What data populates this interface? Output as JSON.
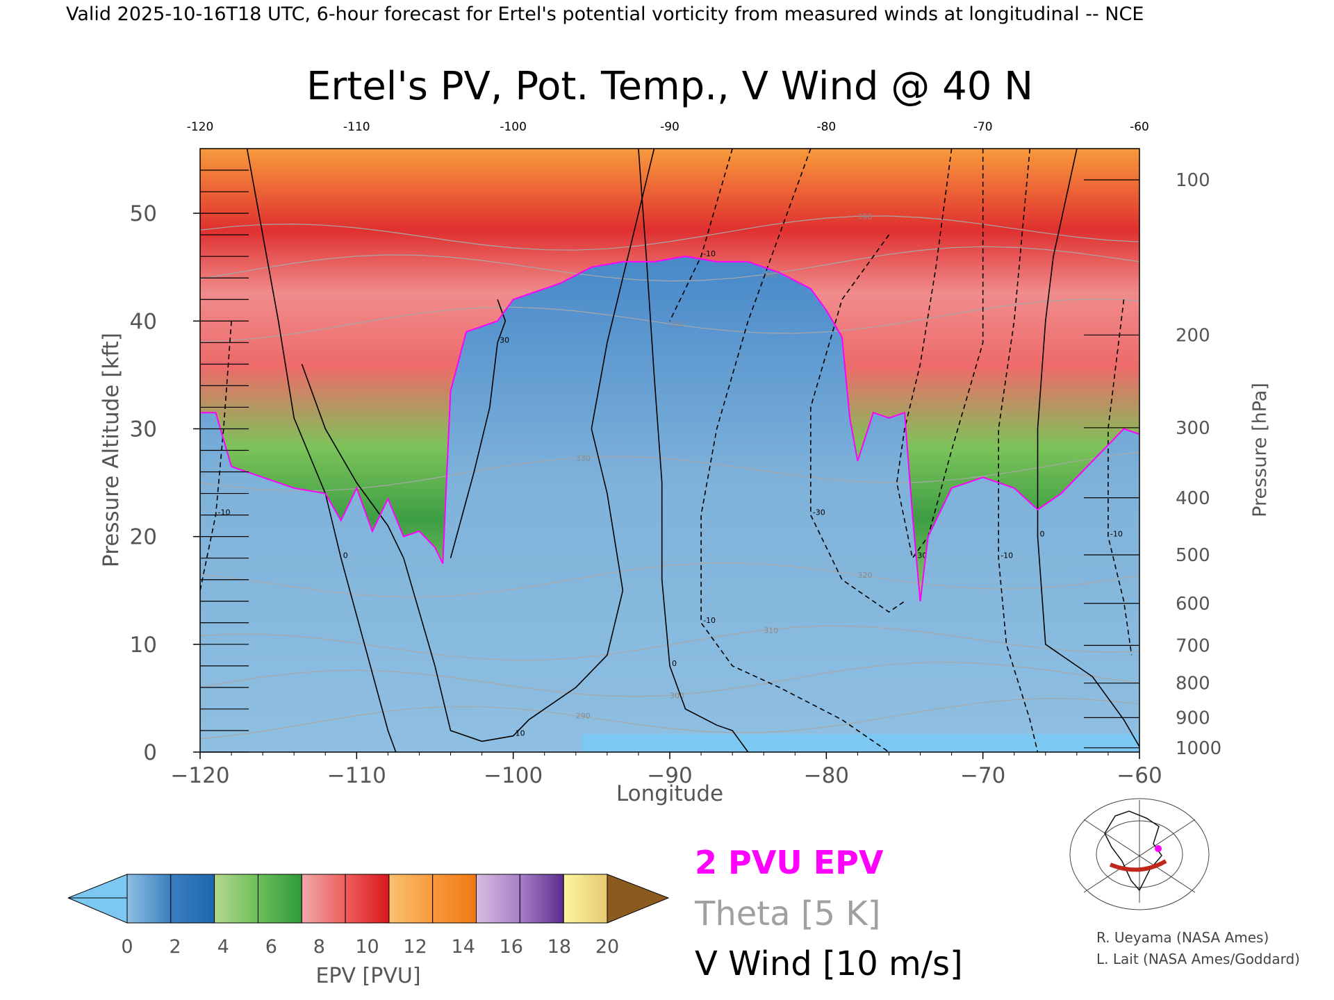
{
  "header": "Valid 2025-10-16T18 UTC, 6-hour forecast for Ertel's potential vorticity from measured winds at longitudinal -- NCE",
  "chart_data": {
    "type": "heatmap",
    "title": "Ertel's PV, Pot. Temp., V Wind @ 40 N",
    "xlabel": "Longitude",
    "ylabel_left": "Pressure Altitude [kft]",
    "ylabel_right": "Pressure [hPa]",
    "xlim": [
      -120,
      -60
    ],
    "ylim": [
      0,
      56
    ],
    "x_ticks": [
      -120,
      -110,
      -100,
      -90,
      -80,
      -70,
      -60
    ],
    "x_tick_labels": [
      "−120",
      "−110",
      "−100",
      "−90",
      "−80",
      "−70",
      "−60"
    ],
    "top_tick_labels": [
      "-120",
      "-110",
      "-100",
      "-90",
      "-80",
      "-70",
      "-60"
    ],
    "y_ticks": [
      0,
      10,
      20,
      30,
      40,
      50
    ],
    "pressure_ticks": [
      {
        "hPa": "100",
        "kft": 53.1
      },
      {
        "hPa": "200",
        "kft": 38.7
      },
      {
        "hPa": "300",
        "kft": 30.1
      },
      {
        "hPa": "400",
        "kft": 23.6
      },
      {
        "hPa": "500",
        "kft": 18.3
      },
      {
        "hPa": "600",
        "kft": 13.8
      },
      {
        "hPa": "700",
        "kft": 9.9
      },
      {
        "hPa": "800",
        "kft": 6.4
      },
      {
        "hPa": "900",
        "kft": 3.2
      },
      {
        "hPa": "1000",
        "kft": 0.4
      }
    ],
    "tropopause_2pvu_kft": [
      [
        -120,
        31.5
      ],
      [
        -119,
        31.5
      ],
      [
        -118,
        26.5
      ],
      [
        -116,
        25.5
      ],
      [
        -114,
        24.5
      ],
      [
        -112,
        24.0
      ],
      [
        -111,
        21.5
      ],
      [
        -110,
        24.5
      ],
      [
        -109,
        20.5
      ],
      [
        -108,
        23.5
      ],
      [
        -107,
        20.0
      ],
      [
        -106,
        20.5
      ],
      [
        -105,
        19.0
      ],
      [
        -104.5,
        17.5
      ],
      [
        -104,
        33.5
      ],
      [
        -103,
        39.0
      ],
      [
        -101,
        40.0
      ],
      [
        -100,
        42.0
      ],
      [
        -99,
        42.5
      ],
      [
        -97,
        43.5
      ],
      [
        -95,
        45.0
      ],
      [
        -93,
        45.5
      ],
      [
        -91,
        45.5
      ],
      [
        -89,
        46.0
      ],
      [
        -87,
        45.5
      ],
      [
        -85,
        45.5
      ],
      [
        -83,
        44.5
      ],
      [
        -81,
        43.0
      ],
      [
        -80,
        41.0
      ],
      [
        -79,
        38.5
      ],
      [
        -78.5,
        31.0
      ],
      [
        -78,
        27.0
      ],
      [
        -77,
        31.5
      ],
      [
        -76,
        31.0
      ],
      [
        -75,
        31.5
      ],
      [
        -74.5,
        22.0
      ],
      [
        -74,
        14.0
      ],
      [
        -73.5,
        20.0
      ],
      [
        -72,
        24.5
      ],
      [
        -70,
        25.5
      ],
      [
        -68,
        24.5
      ],
      [
        -66.5,
        22.5
      ],
      [
        -65,
        24.0
      ],
      [
        -63,
        27.0
      ],
      [
        -61,
        30.0
      ],
      [
        -60,
        29.5
      ]
    ],
    "v_wind_contours_ms": [
      {
        "level": 10,
        "style": "solid",
        "points": [
          [
            -113.5,
            36
          ],
          [
            -112,
            30
          ],
          [
            -110,
            25
          ],
          [
            -108,
            21
          ],
          [
            -107,
            18
          ],
          [
            -106,
            13
          ],
          [
            -105,
            8
          ],
          [
            -104,
            2
          ],
          [
            -102,
            1
          ],
          [
            -100,
            1.5
          ],
          [
            -99,
            3
          ],
          [
            -96,
            6
          ],
          [
            -94,
            9
          ],
          [
            -93,
            15
          ],
          [
            -94,
            24
          ],
          [
            -95,
            30
          ],
          [
            -94,
            38
          ],
          [
            -93,
            44
          ],
          [
            -91,
            56
          ]
        ]
      },
      {
        "level": 0,
        "style": "solid",
        "points": [
          [
            -117,
            56
          ],
          [
            -115,
            40
          ],
          [
            -114,
            31
          ],
          [
            -112,
            24
          ],
          [
            -111,
            18
          ],
          [
            -109.5,
            10
          ],
          [
            -108,
            2
          ],
          [
            -107.5,
            0
          ]
        ]
      },
      {
        "level": 0,
        "style": "solid",
        "points": [
          [
            -92,
            56
          ],
          [
            -91.5,
            46
          ],
          [
            -91,
            35
          ],
          [
            -90.5,
            25
          ],
          [
            -90.5,
            16
          ],
          [
            -90,
            8
          ],
          [
            -89,
            4
          ],
          [
            -87,
            2.5
          ],
          [
            -86,
            2
          ],
          [
            -85,
            0
          ]
        ]
      },
      {
        "level": 30,
        "style": "solid",
        "points": [
          [
            -104,
            18
          ],
          [
            -102.5,
            26
          ],
          [
            -101.5,
            32
          ],
          [
            -101,
            38
          ],
          [
            -100.5,
            40
          ],
          [
            -101,
            42
          ]
        ]
      },
      {
        "level": -10,
        "style": "dashed",
        "points": [
          [
            -81,
            56
          ],
          [
            -83,
            48
          ],
          [
            -85,
            40
          ],
          [
            -87,
            30
          ],
          [
            -88,
            22
          ],
          [
            -88,
            12
          ],
          [
            -86,
            8
          ],
          [
            -83,
            6
          ],
          [
            -79,
            3
          ],
          [
            -76,
            0
          ]
        ]
      },
      {
        "level": -10,
        "style": "dashed",
        "points": [
          [
            -86,
            56
          ],
          [
            -88,
            46
          ],
          [
            -90,
            40
          ]
        ]
      },
      {
        "level": -30,
        "style": "dashed",
        "points": [
          [
            -76,
            48
          ],
          [
            -79,
            42
          ],
          [
            -81,
            32
          ],
          [
            -81,
            22
          ],
          [
            -79,
            16
          ],
          [
            -76,
            13
          ],
          [
            -75,
            14
          ]
        ]
      },
      {
        "level": -30,
        "style": "dashed",
        "points": [
          [
            -72,
            56
          ],
          [
            -73,
            45
          ],
          [
            -74,
            36
          ],
          [
            -75,
            30
          ],
          [
            -75.5,
            25
          ],
          [
            -74.5,
            18
          ],
          [
            -73.5,
            20
          ],
          [
            -72,
            28
          ],
          [
            -70,
            38
          ],
          [
            -70,
            56
          ]
        ]
      },
      {
        "level": -10,
        "style": "dashed",
        "points": [
          [
            -67,
            56
          ],
          [
            -68,
            40
          ],
          [
            -69,
            30
          ],
          [
            -69,
            18
          ],
          [
            -68.5,
            10
          ],
          [
            -67,
            3
          ],
          [
            -66.5,
            0
          ]
        ]
      },
      {
        "level": -10,
        "style": "dashed",
        "points": [
          [
            -118,
            40
          ],
          [
            -118.5,
            30
          ],
          [
            -119,
            22
          ],
          [
            -120,
            15
          ]
        ]
      },
      {
        "level": -10,
        "style": "dashed",
        "points": [
          [
            -61,
            42
          ],
          [
            -62,
            30
          ],
          [
            -62,
            20
          ],
          [
            -61,
            14
          ],
          [
            -60.5,
            9
          ]
        ]
      },
      {
        "level": 0,
        "style": "solid",
        "points": [
          [
            -64,
            56
          ],
          [
            -65.5,
            46
          ],
          [
            -66,
            40
          ],
          [
            -66.5,
            30
          ],
          [
            -66.5,
            20
          ],
          [
            -66,
            10
          ],
          [
            -63,
            7
          ],
          [
            -61,
            3
          ],
          [
            -60,
            0.5
          ]
        ]
      }
    ],
    "theta_contours_K": [
      {
        "label": "290",
        "kft": 2.5
      },
      {
        "label": "300",
        "kft": 6.0
      },
      {
        "label": "310",
        "kft": 9.5
      },
      {
        "label": "320",
        "kft": 15.5
      },
      {
        "label": "330",
        "kft": 25.5
      },
      {
        "label": "350",
        "kft": 39.5
      },
      {
        "label": "360",
        "kft": 44.5
      },
      {
        "label": "390",
        "kft": 47.5
      }
    ],
    "colorbar": {
      "label": "EPV [PVU]",
      "ticks": [
        "0",
        "2",
        "4",
        "6",
        "8",
        "10",
        "12",
        "14",
        "16",
        "18",
        "20"
      ],
      "under_color": "#7cc8f2",
      "over_color": "#8a5a1e",
      "segments": [
        [
          "#8fbfe2",
          "#3a7fc0"
        ],
        [
          "#3a7fc0",
          "#1f66ad"
        ],
        [
          "#b4d88e",
          "#6cbf5a"
        ],
        [
          "#6cbf5a",
          "#2e9a3a"
        ],
        [
          "#f0a8a8",
          "#ee5e5e"
        ],
        [
          "#ee5e5e",
          "#d8161c"
        ],
        [
          "#fcc070",
          "#f89a3c"
        ],
        [
          "#f89a3c",
          "#f07812"
        ],
        [
          "#d8bde0",
          "#a880c8"
        ],
        [
          "#a880c8",
          "#5b2c8e"
        ],
        [
          "#fbf7a0",
          "#e8c870"
        ]
      ]
    },
    "legend": [
      {
        "text": "2 PVU EPV",
        "color": "#ff00ff"
      },
      {
        "text": "Theta [5 K]",
        "color": "#a0a0a0"
      },
      {
        "text": "V Wind [10 m/s]",
        "color": "#000000"
      }
    ]
  },
  "credits": {
    "line1": "R. Ueyama (NASA Ames)",
    "line2": "L. Lait (NASA Ames/Goddard)"
  }
}
